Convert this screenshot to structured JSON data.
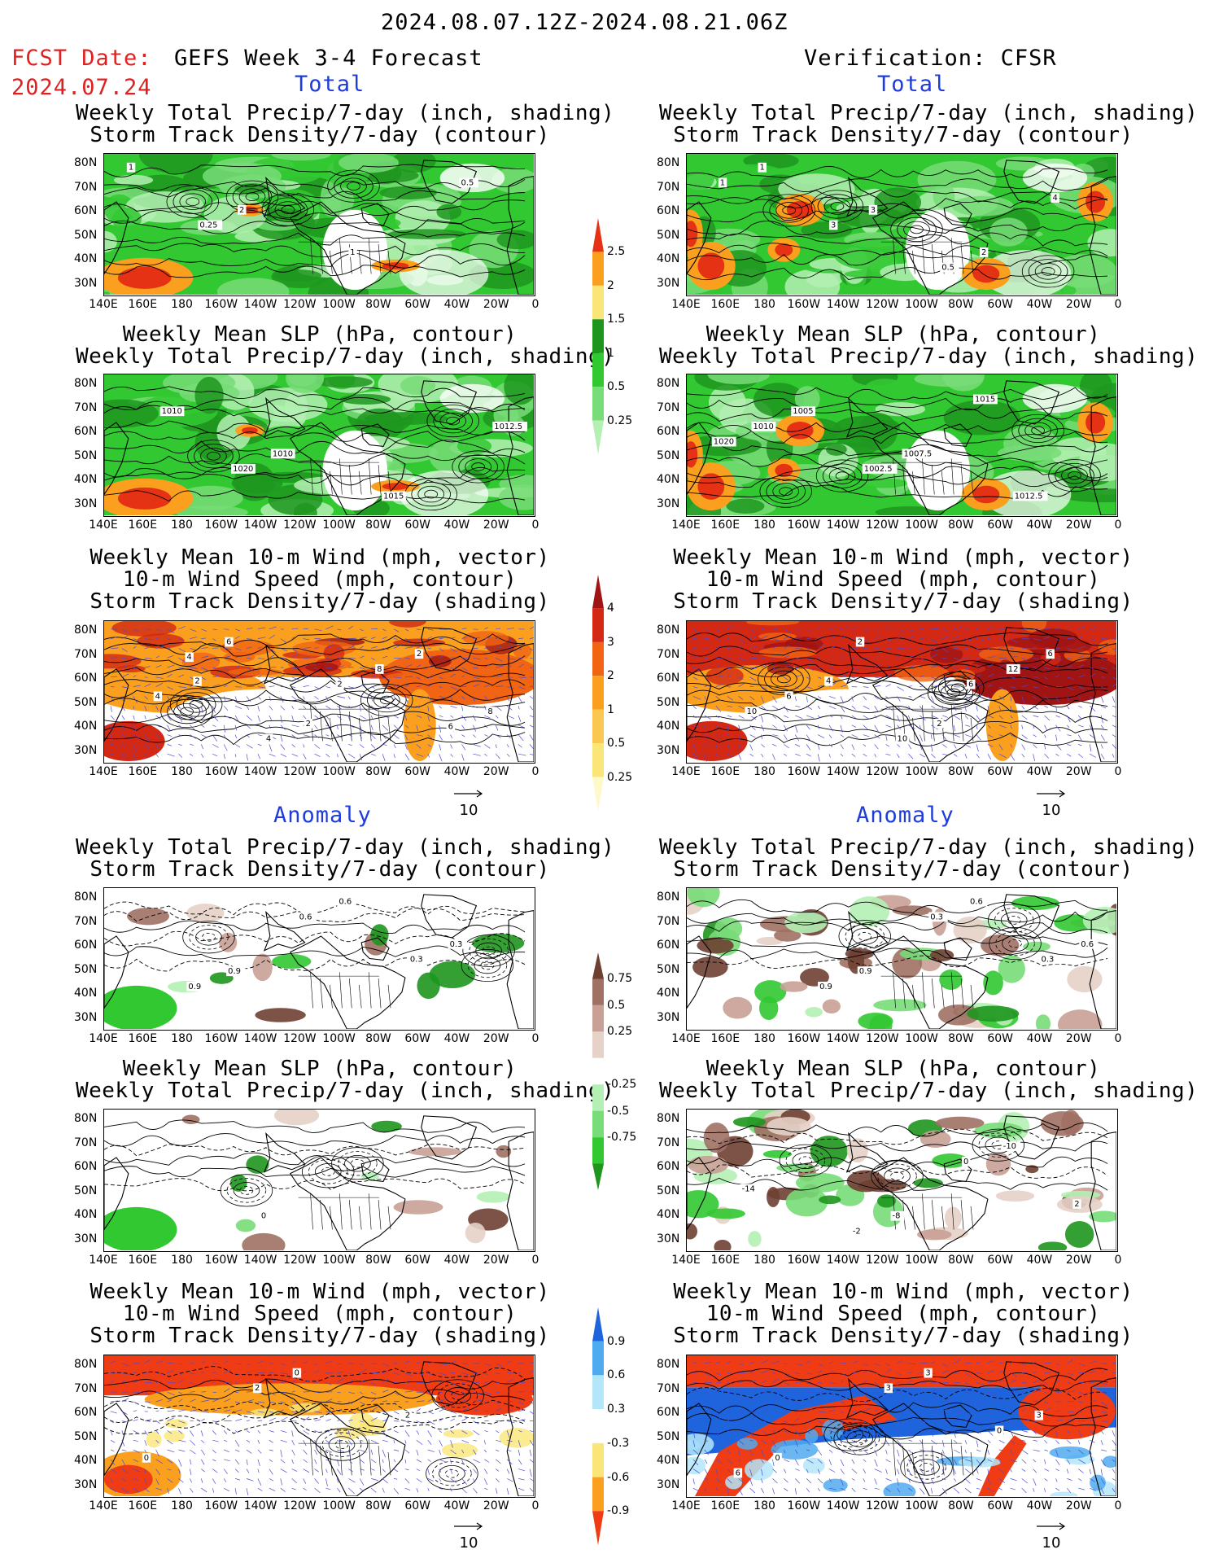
{
  "header": {
    "valid_range": "2024.08.07.12Z-2024.08.21.06Z",
    "fcst_label": "FCST Date:",
    "fcst_date": "2024.07.24",
    "model_title": "GEFS Week 3-4 Forecast",
    "verification_title": "Verification: CFSR"
  },
  "sections": {
    "total": "Total",
    "anomaly": "Anomaly"
  },
  "panel_titles": {
    "precip_storm": [
      "Weekly Total Precip/7-day (inch, shading)",
      "Storm Track Density/7-day (contour)"
    ],
    "slp_precip": [
      "Weekly Mean SLP (hPa, contour)",
      "Weekly Total Precip/7-day (inch, shading)"
    ],
    "wind_storm": [
      "Weekly Mean 10-m Wind (mph, vector)",
      "10-m Wind Speed (mph, contour)",
      "Storm Track Density/7-day (shading)"
    ]
  },
  "axes": {
    "lat_labels": [
      "80N",
      "70N",
      "60N",
      "50N",
      "40N",
      "30N"
    ],
    "lon_labels": [
      "140E",
      "160E",
      "180",
      "160W",
      "140W",
      "120W",
      "100W",
      "80W",
      "60W",
      "40W",
      "20W",
      "0"
    ]
  },
  "vector_reference": "10",
  "colorbars": {
    "precip_total": {
      "labels": [
        "0.25",
        "0.5",
        "1",
        "1.5",
        "2",
        "2.5"
      ],
      "colors": [
        "#b4f0b4",
        "#78dc78",
        "#32c832",
        "#1e961e",
        "#fae678",
        "#faa01e",
        "#e63214"
      ]
    },
    "storm_total": {
      "labels": [
        "0.25",
        "0.5",
        "1",
        "2",
        "3",
        "4"
      ],
      "colors": [
        "#fff8c8",
        "#fae678",
        "#fac850",
        "#faa01e",
        "#f06414",
        "#d22814",
        "#a01414"
      ]
    },
    "precip_anom": {
      "labels": [
        "0.75",
        "0.5",
        "0.25",
        "-0.25",
        "-0.5",
        "-0.75"
      ],
      "colors": [
        "#1e961e",
        "#32c832",
        "#78dc78",
        "#b4f0b4",
        "#ffffff",
        "#e6d2c8",
        "#c8a096",
        "#a07064",
        "#6e4032"
      ]
    },
    "storm_anom": {
      "labels": [
        "0.9",
        "0.6",
        "0.3",
        "-0.3",
        "-0.6",
        "-0.9"
      ],
      "colors": [
        "#f03c14",
        "#faa01e",
        "#fae678",
        "#ffffff",
        "#b4e6fa",
        "#50aaf0",
        "#1e64dc"
      ]
    }
  },
  "contour_labels": {
    "l_precip_storm": [
      "1",
      "2",
      "1",
      "0.5",
      "0.25"
    ],
    "r_precip_storm": [
      "1",
      "3",
      "2",
      "1",
      "3",
      "0.5",
      "4"
    ],
    "l_slp": [
      "1010",
      "1010",
      "1015",
      "1012.5",
      "1020"
    ],
    "r_slp": [
      "1005",
      "1007.5",
      "1012.5",
      "1010",
      "1002.5",
      "1015",
      "1020"
    ],
    "l_wind": [
      "2",
      "2",
      "2",
      "4",
      "4",
      "8",
      "8",
      "6",
      "2",
      "6",
      "4"
    ],
    "r_wind": [
      "4",
      "2",
      "6",
      "6",
      "10",
      "12",
      "10",
      "2",
      "6"
    ],
    "l_precip_storm_anom": [
      "0.9",
      "0.6",
      "0.3",
      "0.9",
      "0.6",
      "0.3"
    ],
    "r_precip_storm_anom": [
      "0.9",
      "0.6",
      "0.6",
      "0.9",
      "0.3",
      "0.3"
    ],
    "l_slp_anom": [
      "0"
    ],
    "r_slp_anom": [
      "-8",
      "-10",
      "-14",
      "-2",
      "0",
      "2"
    ],
    "l_wind_anom": [
      "0",
      "2",
      "0",
      "2"
    ],
    "r_wind_anom": [
      "3",
      "3",
      "0",
      "3",
      "0",
      "6"
    ]
  }
}
